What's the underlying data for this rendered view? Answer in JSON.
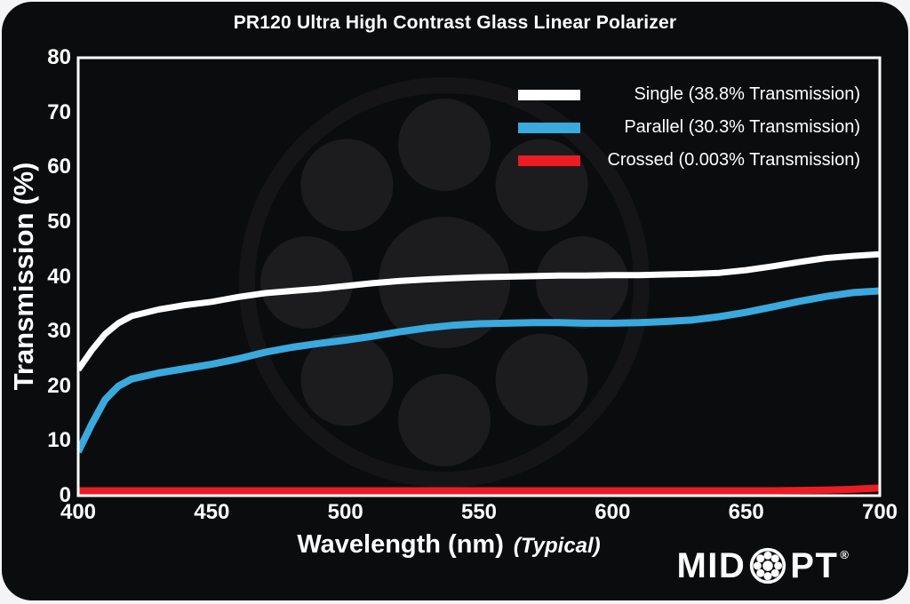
{
  "chart_data": {
    "type": "line",
    "title": "PR120 Ultra High Contrast Glass Linear Polarizer",
    "xlabel": "Wavelength (nm)",
    "xlabel_note": "(Typical)",
    "ylabel": "Transmission (%)",
    "xlim": [
      400,
      700
    ],
    "ylim": [
      0,
      80
    ],
    "xticks": [
      400,
      450,
      500,
      550,
      600,
      650,
      700
    ],
    "yticks": [
      0,
      10,
      20,
      30,
      40,
      50,
      60,
      70,
      80
    ],
    "grid": false,
    "legend_position": "top-right",
    "background": "#0b0c0d",
    "x": [
      400,
      405,
      410,
      415,
      420,
      430,
      440,
      450,
      460,
      470,
      480,
      490,
      500,
      510,
      520,
      530,
      540,
      550,
      560,
      570,
      580,
      590,
      600,
      610,
      620,
      630,
      640,
      650,
      660,
      670,
      680,
      690,
      700
    ],
    "series": [
      {
        "name": "Single",
        "legend": "Single (38.8% Transmission)",
        "color": "#ffffff",
        "width": 7,
        "values": [
          23.0,
          26.5,
          29.5,
          31.5,
          32.8,
          34.0,
          34.8,
          35.4,
          36.3,
          37.0,
          37.4,
          37.8,
          38.3,
          38.8,
          39.2,
          39.5,
          39.7,
          39.9,
          40.0,
          40.1,
          40.2,
          40.2,
          40.3,
          40.3,
          40.4,
          40.5,
          40.7,
          41.2,
          41.9,
          42.7,
          43.4,
          43.8,
          44.1
        ]
      },
      {
        "name": "Parallel",
        "legend": "Parallel (30.3% Transmission)",
        "color": "#3aa9de",
        "width": 8,
        "values": [
          8.0,
          13.0,
          17.5,
          20.0,
          21.3,
          22.4,
          23.2,
          24.0,
          25.0,
          26.2,
          27.1,
          27.8,
          28.4,
          29.1,
          29.9,
          30.6,
          31.1,
          31.4,
          31.5,
          31.6,
          31.6,
          31.5,
          31.5,
          31.6,
          31.8,
          32.1,
          32.7,
          33.5,
          34.5,
          35.5,
          36.4,
          37.1,
          37.4
        ]
      },
      {
        "name": "Crossed",
        "legend": "Crossed (0.003% Transmission)",
        "color": "#ec1c24",
        "width": 8,
        "values": [
          0.9,
          0.9,
          0.9,
          0.9,
          0.9,
          0.9,
          0.9,
          0.9,
          0.9,
          0.9,
          0.9,
          0.9,
          0.9,
          0.9,
          0.9,
          0.9,
          0.9,
          0.9,
          0.9,
          0.9,
          0.9,
          0.9,
          0.9,
          0.9,
          0.9,
          0.9,
          0.9,
          0.9,
          0.9,
          0.95,
          1.0,
          1.15,
          1.4
        ]
      }
    ]
  },
  "watermark": {
    "icon": "midopt-bearing-watermark",
    "ring_color": "#151517",
    "ball_color": "#1c1c1f"
  },
  "branding": {
    "left": "MID",
    "right": "PT",
    "registered": "®",
    "icon": "bearing-o-icon"
  }
}
